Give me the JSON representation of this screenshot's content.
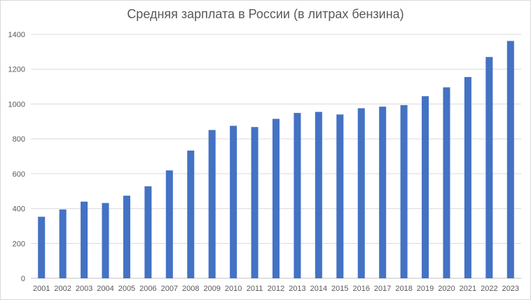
{
  "chart_data": {
    "type": "bar",
    "title": "Средняя зарплата в России (в литрах бензина)",
    "xlabel": "",
    "ylabel": "",
    "ylim": [
      0,
      1400
    ],
    "yticks": [
      0,
      200,
      400,
      600,
      800,
      1000,
      1200,
      1400
    ],
    "grid": true,
    "legend": "none",
    "bar_color": "#4472c4",
    "categories": [
      "2001",
      "2002",
      "2003",
      "2004",
      "2005",
      "2006",
      "2007",
      "2008",
      "2009",
      "2010",
      "2011",
      "2012",
      "2013",
      "2014",
      "2015",
      "2016",
      "2017",
      "2018",
      "2019",
      "2020",
      "2021",
      "2022",
      "2023"
    ],
    "values": [
      353,
      395,
      440,
      432,
      474,
      528,
      619,
      733,
      851,
      875,
      868,
      915,
      949,
      955,
      940,
      976,
      985,
      994,
      1045,
      1096,
      1155,
      1270,
      1362
    ]
  }
}
